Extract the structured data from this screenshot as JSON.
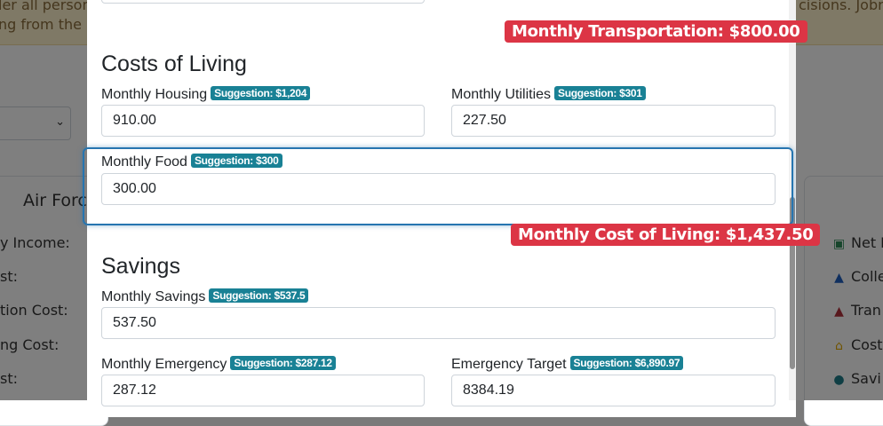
{
  "background": {
    "banner_line1": "ler all personal",
    "banner_line1_right": "cisions. Jobre",
    "banner_line2": "ng from the u",
    "card_title": "Air Forc",
    "card_rows": [
      "y Income:",
      "st:",
      "tion Cost:",
      "ng Cost:",
      "st:"
    ],
    "right_list": [
      {
        "icon": "money-icon",
        "label": "Net M",
        "color": "#2e8b57",
        "glyph": "▣"
      },
      {
        "icon": "graduation-cap-icon",
        "label": "Colle",
        "color": "#1f5fbf",
        "glyph": "▲"
      },
      {
        "icon": "graduation-cap-icon",
        "label": "Tran",
        "color": "#b0303a",
        "glyph": "▲"
      },
      {
        "icon": "home-icon",
        "label": "Cost",
        "color": "#e0a800",
        "glyph": "⌂"
      },
      {
        "icon": "piggy-bank-icon",
        "label": "Savi",
        "color": "#1e7d88",
        "glyph": "●"
      }
    ]
  },
  "modal": {
    "transportation_total": "Monthly Transportation: $800.00",
    "cost_of_living_title": "Costs of Living",
    "housing": {
      "label": "Monthly Housing",
      "suggestion": "Suggestion: $1,204",
      "value": "910.00"
    },
    "utilities": {
      "label": "Monthly Utilities",
      "suggestion": "Suggestion: $301",
      "value": "227.50"
    },
    "food": {
      "label": "Monthly Food",
      "suggestion": "Suggestion: $300",
      "value": "300.00"
    },
    "cost_of_living_total": "Monthly Cost of Living: $1,437.50",
    "savings_title": "Savings",
    "savings": {
      "label": "Monthly Savings",
      "suggestion": "Suggestion: $537.5",
      "value": "537.50"
    },
    "emergency": {
      "label": "Monthly Emergency",
      "suggestion": "Suggestion: $287.12",
      "value": "287.12"
    },
    "emergency_target": {
      "label": "Emergency Target",
      "suggestion": "Suggestion: $6,890.97",
      "value": "8384.19"
    }
  }
}
